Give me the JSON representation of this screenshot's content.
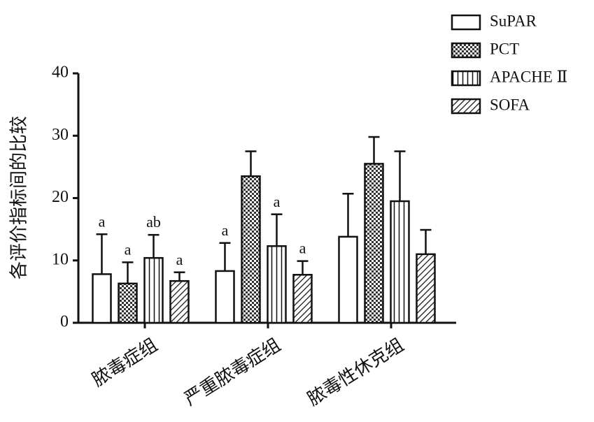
{
  "chart_data": {
    "type": "bar",
    "y_label": "各评价指标间的比较",
    "categories": [
      "脓毒症组",
      "严重脓毒症组",
      "脓毒性休克组"
    ],
    "ylim": [
      0,
      40
    ],
    "yticks": [
      0,
      10,
      20,
      30,
      40
    ],
    "series": [
      {
        "name": "SuPAR",
        "pattern": "none",
        "values": [
          7.8,
          8.3,
          13.8
        ],
        "errors": [
          6.4,
          4.5,
          6.9
        ],
        "labels": [
          "a",
          "a",
          null
        ]
      },
      {
        "name": "PCT",
        "pattern": "checker",
        "values": [
          6.3,
          23.5,
          25.5
        ],
        "errors": [
          3.4,
          4.0,
          4.3
        ],
        "labels": [
          "a",
          null,
          null
        ]
      },
      {
        "name": "APACHE Ⅱ",
        "pattern": "vertical",
        "values": [
          10.4,
          12.3,
          19.5
        ],
        "errors": [
          3.7,
          5.1,
          8.0
        ],
        "labels": [
          "ab",
          "a",
          null
        ]
      },
      {
        "name": "SOFA",
        "pattern": "diagonal",
        "values": [
          6.7,
          7.7,
          11.0
        ],
        "errors": [
          1.4,
          2.2,
          3.9
        ],
        "labels": [
          "a",
          "a",
          null
        ]
      }
    ]
  }
}
